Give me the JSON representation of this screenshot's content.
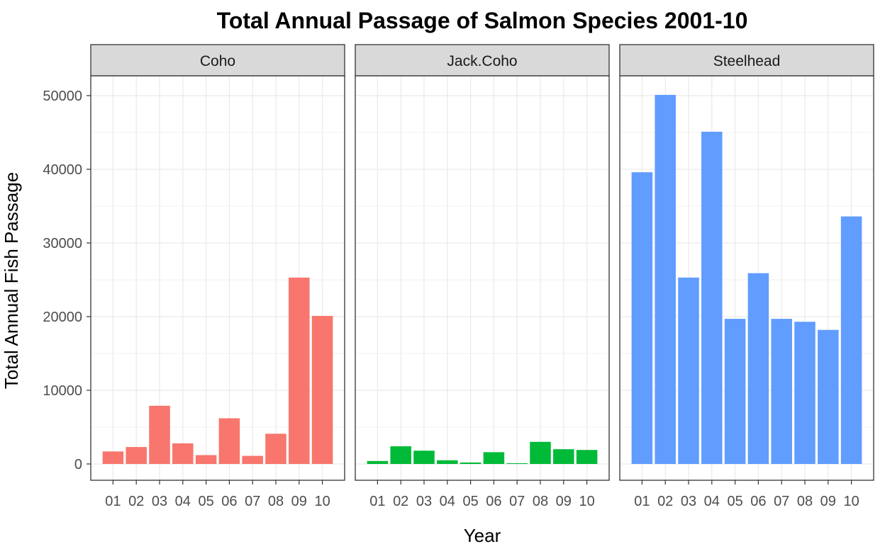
{
  "chart_data": {
    "type": "bar",
    "title": "Total Annual Passage of Salmon Species 2001-10",
    "xlabel": "Year",
    "ylabel": "Total Annual Fish Passage",
    "ylim": [
      0,
      52000
    ],
    "yticks": [
      0,
      10000,
      20000,
      30000,
      40000,
      50000
    ],
    "grid": true,
    "categories": [
      "01",
      "02",
      "03",
      "04",
      "05",
      "06",
      "07",
      "08",
      "09",
      "10"
    ],
    "panels": [
      {
        "name": "Coho",
        "color": "#F8766D",
        "values": [
          1700,
          2300,
          7900,
          2800,
          1200,
          6200,
          1100,
          4100,
          25300,
          20100
        ]
      },
      {
        "name": "Jack.Coho",
        "color": "#00BA38",
        "values": [
          400,
          2400,
          1800,
          500,
          200,
          1600,
          100,
          3000,
          2000,
          1900
        ]
      },
      {
        "name": "Steelhead",
        "color": "#619CFF",
        "values": [
          39600,
          50100,
          25300,
          45100,
          19700,
          25900,
          19700,
          19300,
          18200,
          33600
        ]
      }
    ]
  }
}
